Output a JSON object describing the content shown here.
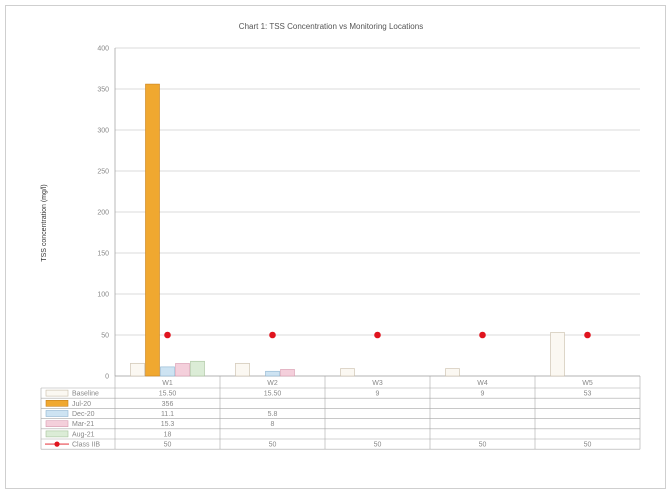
{
  "chart_data": {
    "type": "bar",
    "title": "Chart 1: TSS Concentration vs Monitoring Locations",
    "ylabel": "TSS concentration (mg/l)",
    "xlabel": "",
    "ylim": [
      0,
      400
    ],
    "ytick_labels": [
      "0",
      "50",
      "100",
      "150",
      "200",
      "250",
      "300",
      "350",
      "400"
    ],
    "ytick_values": [
      0,
      50,
      100,
      150,
      200,
      250,
      300,
      350,
      400
    ],
    "categories": [
      "W1",
      "W2",
      "W3",
      "W4",
      "W5"
    ],
    "grid": true,
    "legend": "data-table-left",
    "series": [
      {
        "name": "Baseline",
        "kind": "bar",
        "color": "#fbf8f2",
        "stroke": "#c8bca8",
        "values": [
          15.5,
          15.5,
          9,
          9,
          53
        ],
        "labels": [
          "15.50",
          "15.50",
          "9",
          "9",
          "53"
        ]
      },
      {
        "name": "Jul-20",
        "kind": "bar",
        "color": "#f0a830",
        "stroke": "#c8801a",
        "values": [
          356,
          null,
          null,
          null,
          null
        ],
        "labels": [
          "356",
          "",
          "",
          "",
          ""
        ]
      },
      {
        "name": "Dec-20",
        "kind": "bar",
        "color": "#cde3f2",
        "stroke": "#8fb4d0",
        "values": [
          11.1,
          5.8,
          null,
          null,
          null
        ],
        "labels": [
          "11.1",
          "5.8",
          "",
          "",
          ""
        ]
      },
      {
        "name": "Mar-21",
        "kind": "bar",
        "color": "#f4cfdb",
        "stroke": "#d79bb0",
        "values": [
          15.3,
          8,
          null,
          null,
          null
        ],
        "labels": [
          "15.3",
          "8",
          "",
          "",
          ""
        ]
      },
      {
        "name": "Aug-21",
        "kind": "bar",
        "color": "#dbecd6",
        "stroke": "#a7c29c",
        "values": [
          18,
          null,
          null,
          null,
          null
        ],
        "labels": [
          "18",
          "",
          "",
          "",
          ""
        ]
      },
      {
        "name": "Class IIB",
        "kind": "marker",
        "color": "#e0141e",
        "values": [
          50,
          50,
          50,
          50,
          50
        ],
        "labels": [
          "50",
          "50",
          "50",
          "50",
          "50"
        ]
      }
    ]
  }
}
